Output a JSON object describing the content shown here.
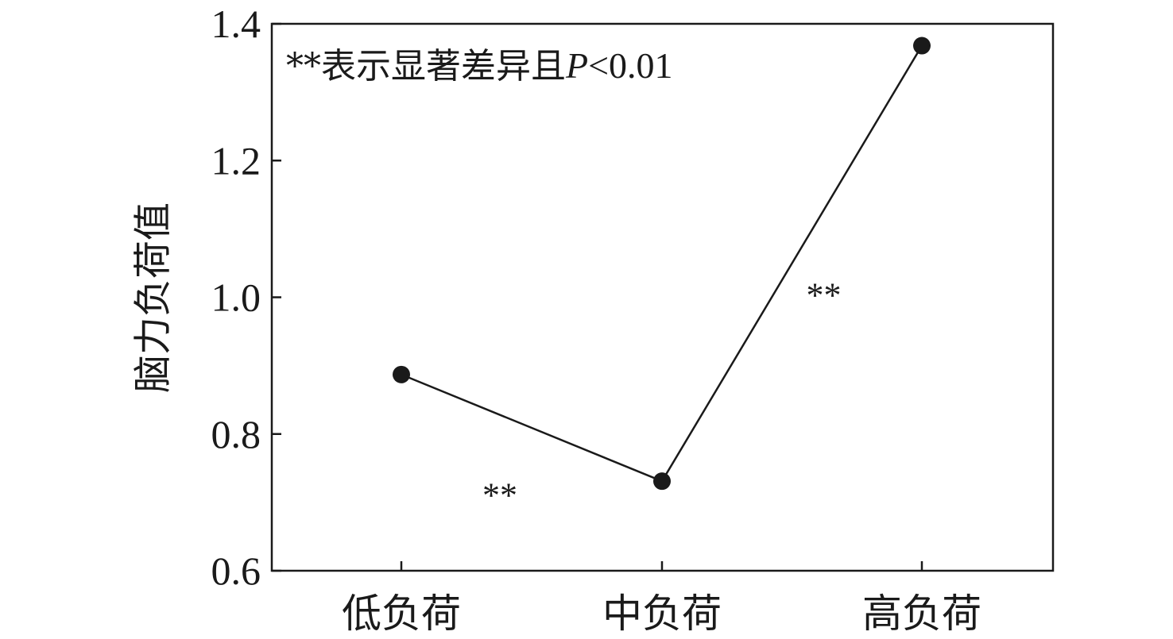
{
  "chart_data": {
    "type": "line",
    "categories": [
      "低负荷",
      "中负荷",
      "高负荷"
    ],
    "values": [
      0.887,
      0.731,
      1.368
    ],
    "ylabel": "脑力负荷值",
    "xlabel": "",
    "ylim": [
      0.6,
      1.4
    ],
    "yticks": [
      "0.6",
      "0.8",
      "1.0",
      "1.2",
      "1.4"
    ],
    "grid": false,
    "annotation": {
      "prefix": "**表示显著差异且",
      "p_symbol": "P",
      "suffix": "<0.01"
    },
    "significance_marks": [
      "**",
      "**"
    ],
    "colors": {
      "line": "#1a1a1a",
      "marker": "#1a1a1a",
      "frame": "#1a1a1a"
    }
  }
}
